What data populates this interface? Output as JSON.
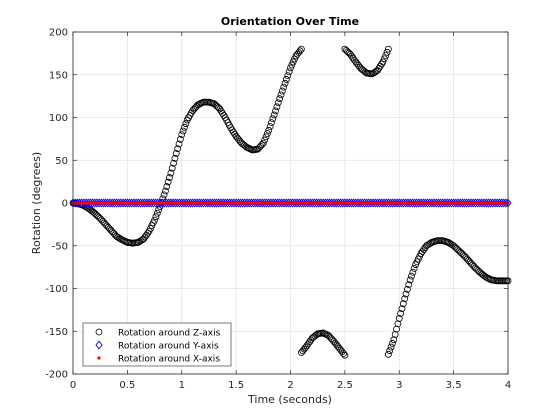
{
  "chart_data": {
    "type": "scatter",
    "title": "Orientation Over Time",
    "xlabel": "Time (seconds)",
    "ylabel": "Rotation (degrees)",
    "xlim": [
      0,
      4
    ],
    "ylim": [
      -200,
      200
    ],
    "xticks": [
      0,
      0.5,
      1,
      1.5,
      2,
      2.5,
      3,
      3.5,
      4
    ],
    "xtick_labels": [
      "0",
      "0.5",
      "1",
      "1.5",
      "2",
      "2.5",
      "3",
      "3.5",
      "4"
    ],
    "yticks": [
      -200,
      -150,
      -100,
      -50,
      0,
      50,
      100,
      150,
      200
    ],
    "ytick_labels": [
      "-200",
      "-150",
      "-100",
      "-50",
      "0",
      "50",
      "100",
      "150",
      "200"
    ],
    "grid": true,
    "legend_position": "bottom-left",
    "series": [
      {
        "name": "Rotation around Z-axis",
        "marker": "circle-open",
        "color": "#000000",
        "segments": [
          {
            "x": [
              0,
              0.05,
              0.1,
              0.15,
              0.2,
              0.25,
              0.3,
              0.35,
              0.4,
              0.45,
              0.5,
              0.55,
              0.6,
              0.65,
              0.7,
              0.75,
              0.8,
              0.85,
              0.9,
              0.95,
              1.0,
              1.05,
              1.1,
              1.15,
              1.2,
              1.25,
              1.3,
              1.35,
              1.4,
              1.45,
              1.5,
              1.55,
              1.6,
              1.65,
              1.7,
              1.75,
              1.8,
              1.85,
              1.9,
              1.95,
              2.0,
              2.05,
              2.1
            ],
            "y": [
              0,
              -1,
              -3,
              -7,
              -12,
              -18,
              -25,
              -32,
              -39,
              -43,
              -46,
              -47,
              -46,
              -42,
              -33,
              -20,
              -4,
              14,
              35,
              58,
              80,
              97,
              108,
              115,
              118,
              118,
              116,
              110,
              100,
              88,
              78,
              70,
              65,
              62,
              63,
              70,
              85,
              103,
              122,
              140,
              158,
              172,
              180
            ]
          },
          {
            "x": [
              2.5,
              2.55,
              2.6,
              2.65,
              2.7,
              2.75,
              2.8,
              2.85,
              2.9
            ],
            "y": [
              180,
              174,
              165,
              157,
              152,
              151,
              155,
              165,
              180
            ]
          },
          {
            "x": [
              2.1,
              2.15,
              2.2,
              2.25,
              2.3,
              2.35,
              2.4,
              2.45,
              2.5
            ],
            "y": [
              -175,
              -167,
              -158,
              -153,
              -152,
              -155,
              -162,
              -170,
              -178
            ]
          },
          {
            "x": [
              2.9,
              2.95,
              3.0,
              3.05,
              3.1,
              3.15,
              3.2,
              3.25,
              3.3,
              3.35,
              3.4,
              3.45,
              3.5,
              3.55,
              3.6,
              3.65,
              3.7,
              3.75,
              3.8,
              3.85,
              3.9,
              3.95,
              4.0
            ],
            "y": [
              -177,
              -160,
              -135,
              -112,
              -90,
              -72,
              -59,
              -50,
              -46,
              -44,
              -44,
              -46,
              -50,
              -56,
              -62,
              -69,
              -76,
              -82,
              -87,
              -90,
              -91,
              -91,
              -91
            ]
          }
        ]
      },
      {
        "name": "Rotation around Y-axis",
        "marker": "diamond-open",
        "color": "#0000ff",
        "constant": 0,
        "step": 0.02
      },
      {
        "name": "Rotation around X-axis",
        "marker": "dot",
        "color": "#ff0000",
        "constant": 0,
        "step": 0.02
      }
    ]
  }
}
